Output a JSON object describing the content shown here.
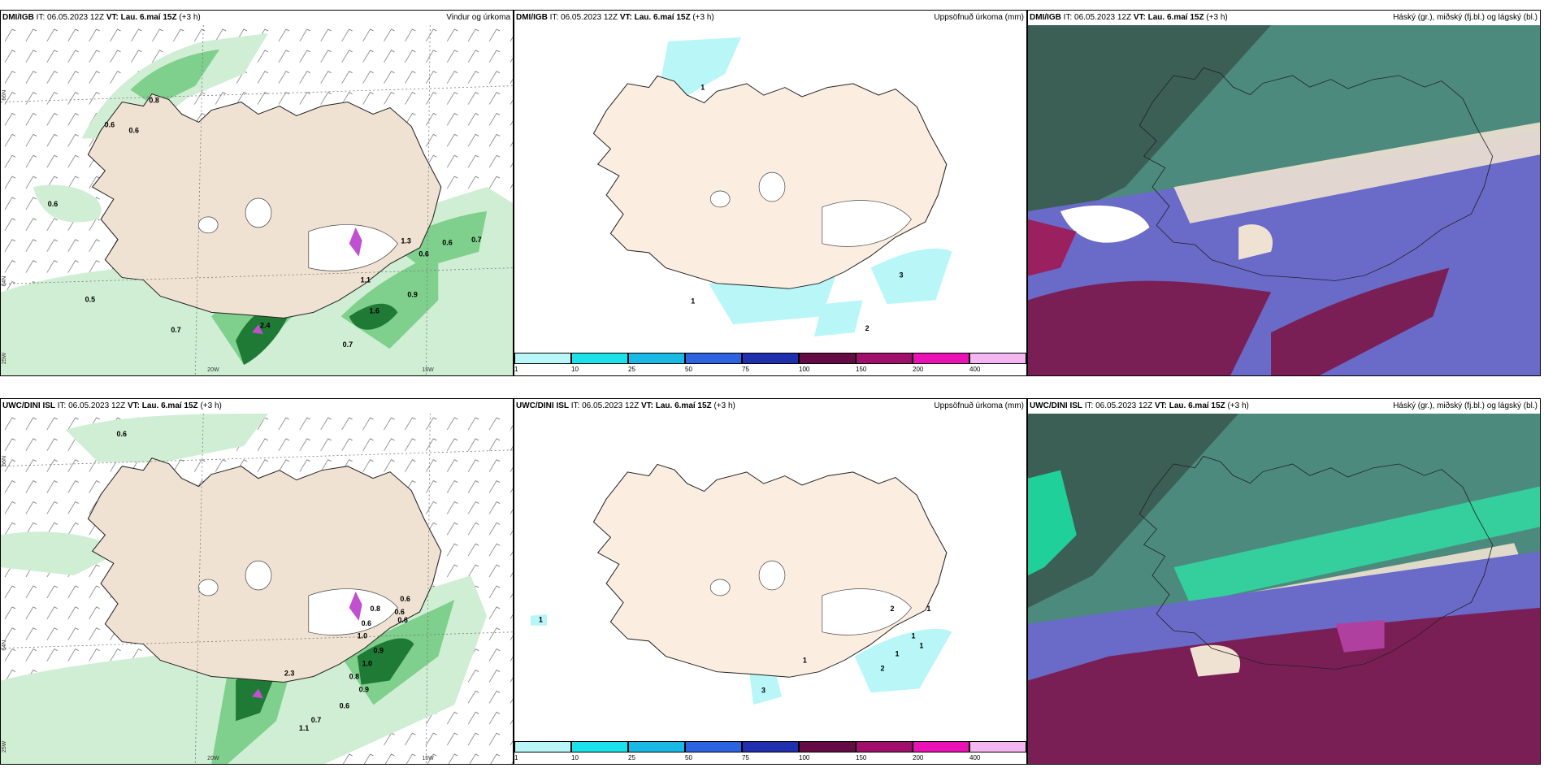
{
  "panels": [
    {
      "model": "DMI/IGB",
      "it_label": "IT:",
      "it": "06.05.2023 12Z",
      "vt_label": "VT:",
      "vt": "Lau. 6.maí 15Z",
      "lead": "(+3 h)",
      "product": "Vindur og úrkoma"
    },
    {
      "model": "DMI/IGB",
      "it_label": "IT:",
      "it": "06.05.2023 12Z",
      "vt_label": "VT:",
      "vt": "Lau. 6.maí 15Z",
      "lead": "(+3 h)",
      "product": "Uppsöfnuð úrkoma (mm)"
    },
    {
      "model": "DMI/IGB",
      "it_label": "IT:",
      "it": "06.05.2023 12Z",
      "vt_label": "VT:",
      "vt": "Lau. 6.maí 15Z",
      "lead": "(+3 h)",
      "product": "Háský (gr.), miðský (fj.bl.) og lágský (bl.)"
    },
    {
      "model": "UWC/DINI ISL",
      "it_label": "IT:",
      "it": "06.05.2023 12Z",
      "vt_label": "VT:",
      "vt": "Lau. 6.maí 15Z",
      "lead": "(+3 h)",
      "product": ""
    },
    {
      "model": "UWC/DINI ISL",
      "it_label": "IT:",
      "it": "06.05.2023 12Z",
      "vt_label": "VT:",
      "vt": "Lau. 6.maí 15Z",
      "lead": "(+3 h)",
      "product": "Uppsöfnuð úrkoma (mm)"
    },
    {
      "model": "UWC/DINI ISL",
      "it_label": "IT:",
      "it": "06.05.2023 12Z",
      "vt_label": "VT:",
      "vt": "Lau. 6.maí 15Z",
      "lead": "(+3 h)",
      "product": "Háský (gr.), miðský (fj.bl.) og lágský (bl.)"
    }
  ],
  "axis_labels": {
    "lat66": "66N",
    "lat64": "64N",
    "lon25": "25W",
    "lon20": "20W",
    "lon15": "15W"
  },
  "precip_labels_top": [
    "0.8",
    "0.6",
    "0.6",
    "0.6",
    "1.3",
    "0.6",
    "0.6",
    "0.7",
    "1.1",
    "0.9",
    "1.6",
    "0.5",
    "0.7",
    "0.7",
    "2.4"
  ],
  "precip_labels_bottom": [
    "0.6",
    "0.6",
    "0.8",
    "0.6",
    "0.6",
    "0.6",
    "1.0",
    "0.9",
    "1.0",
    "0.8",
    "0.9",
    "0.6",
    "0.7",
    "1.1",
    "2.3"
  ],
  "accum_labels_top": [
    "1",
    "3",
    "2",
    "1"
  ],
  "accum_labels_bottom": [
    "1",
    "2",
    "1",
    "1",
    "1",
    "2",
    "3",
    "1",
    "1"
  ],
  "colorbar": {
    "ticks": [
      "1",
      "10",
      "25",
      "50",
      "75",
      "100",
      "150",
      "200",
      "400"
    ],
    "colors": [
      "#b8f6f8",
      "#1be2ea",
      "#19b9e6",
      "#2d62e0",
      "#1f2fae",
      "#640a45",
      "#a0106a",
      "#ea12b4",
      "#f4b6f0"
    ]
  },
  "colors": {
    "land": "#f0e2d2",
    "precip_light": "#cfeed3",
    "precip_mid": "#7fcf8d",
    "precip_dark": "#1f7a35",
    "accum_light": "#b8f6f8",
    "cloud_high": "#4c8a7d",
    "cloud_mid": "#6a6ac8",
    "cloud_low": "#7a1f55"
  }
}
